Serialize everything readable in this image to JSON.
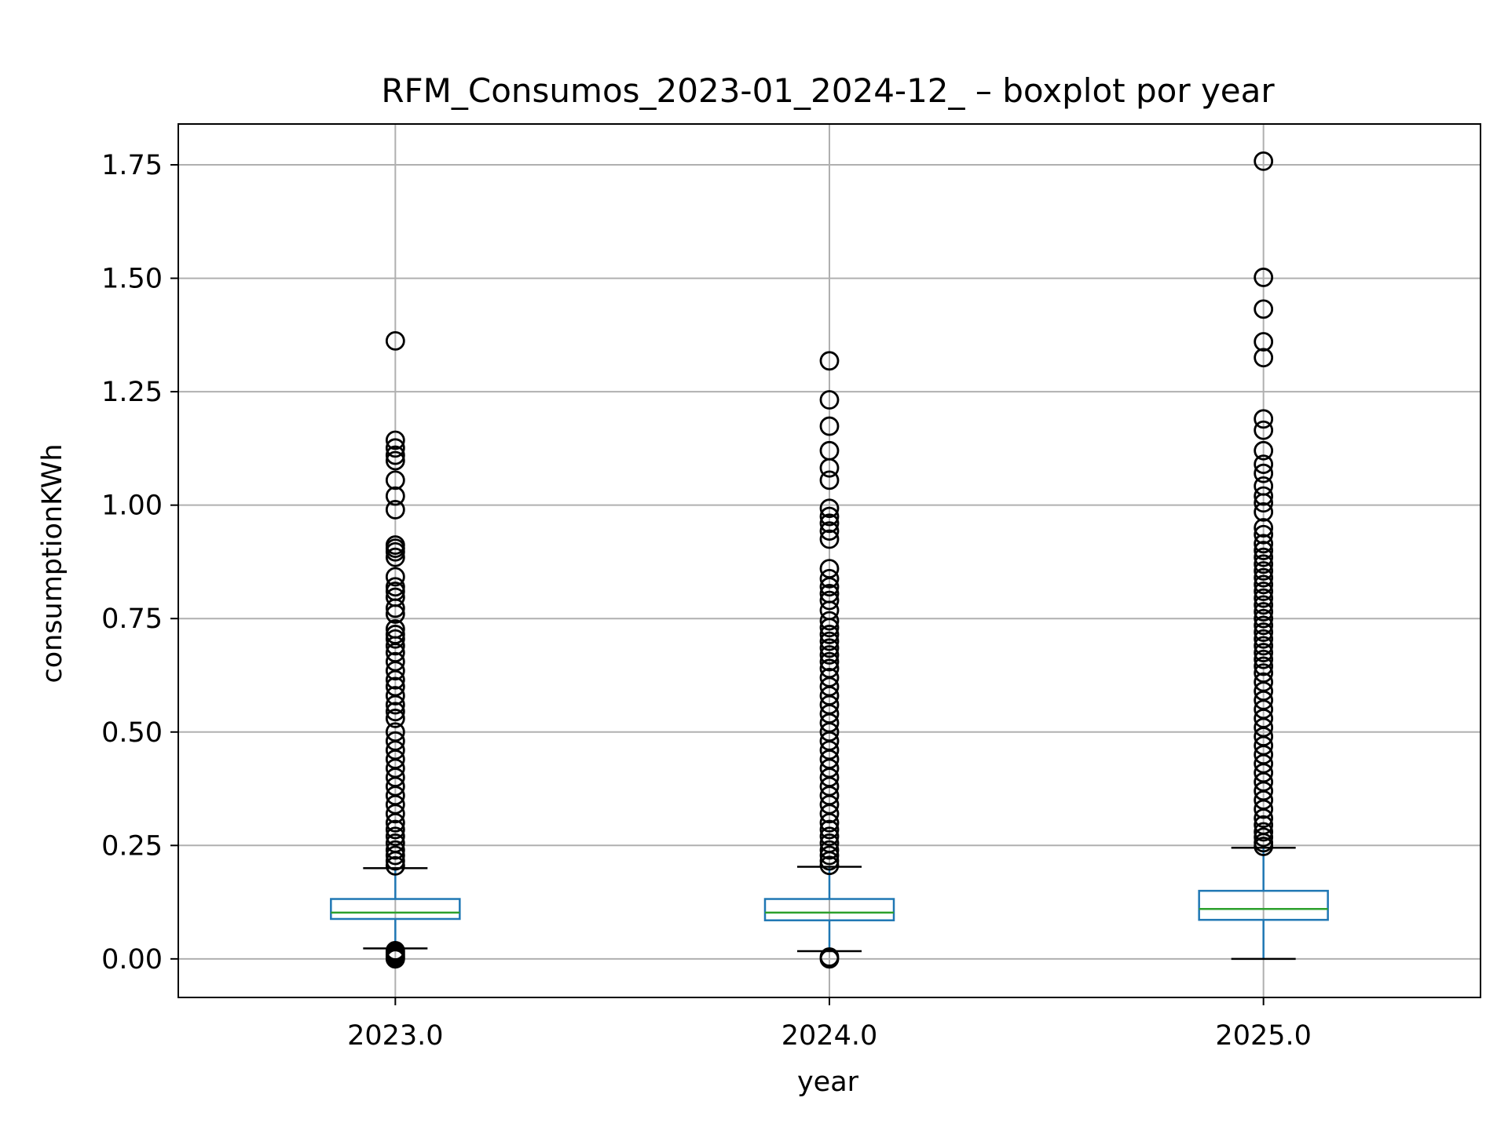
{
  "chart_data": {
    "type": "boxplot",
    "title": "RFM_Consumos_2023-01_2024-12_ – boxplot por year",
    "xlabel": "year",
    "ylabel": "consumptionKWh",
    "categories": [
      "2023.0",
      "2024.0",
      "2025.0"
    ],
    "ylim": [
      -0.085,
      1.84
    ],
    "yticks": [
      "0.00",
      "0.25",
      "0.50",
      "0.75",
      "1.00",
      "1.25",
      "1.50",
      "1.75"
    ],
    "grid": true,
    "colors": {
      "box": "#1f77b4",
      "median": "#2ca02c",
      "whisker": "#1f77b4",
      "cap": "#000000",
      "flier": "#000000",
      "grid": "#b0b0b0"
    },
    "boxes": [
      {
        "category": "2023.0",
        "whislo": 0.023,
        "q1": 0.088,
        "med": 0.102,
        "q3": 0.132,
        "whishi": 0.2,
        "fliers_low": [
          0.0,
          0.003,
          0.006,
          0.01,
          0.014,
          0.018
        ],
        "fliers_high": [
          1.362,
          1.143,
          1.126,
          1.11,
          1.098,
          1.055,
          1.02,
          0.99,
          0.912,
          0.905,
          0.897,
          0.885,
          0.842,
          0.82,
          0.81,
          0.797,
          0.773,
          0.76,
          0.727,
          0.715,
          0.705,
          0.69,
          0.675,
          0.655,
          0.635,
          0.615,
          0.6,
          0.58,
          0.56,
          0.545,
          0.53,
          0.5,
          0.48,
          0.46,
          0.44,
          0.42,
          0.4,
          0.38,
          0.36,
          0.34,
          0.32,
          0.3,
          0.285,
          0.27,
          0.255,
          0.24,
          0.228,
          0.216,
          0.205
        ]
      },
      {
        "category": "2024.0",
        "whislo": 0.017,
        "q1": 0.085,
        "med": 0.102,
        "q3": 0.132,
        "whishi": 0.203,
        "fliers_low": [
          0.0,
          0.004
        ],
        "fliers_high": [
          1.318,
          1.232,
          1.174,
          1.12,
          1.082,
          1.055,
          0.993,
          0.975,
          0.96,
          0.943,
          0.925,
          0.86,
          0.838,
          0.82,
          0.805,
          0.79,
          0.768,
          0.745,
          0.73,
          0.715,
          0.7,
          0.685,
          0.67,
          0.655,
          0.64,
          0.62,
          0.6,
          0.58,
          0.56,
          0.54,
          0.52,
          0.5,
          0.48,
          0.46,
          0.44,
          0.42,
          0.4,
          0.38,
          0.36,
          0.34,
          0.32,
          0.3,
          0.285,
          0.27,
          0.255,
          0.24,
          0.228,
          0.216,
          0.206
        ]
      },
      {
        "category": "2025.0",
        "whislo": 0.0,
        "q1": 0.086,
        "med": 0.11,
        "q3": 0.15,
        "whishi": 0.245,
        "fliers_low": [],
        "fliers_high": [
          1.758,
          1.502,
          1.432,
          1.36,
          1.325,
          1.19,
          1.165,
          1.12,
          1.09,
          1.07,
          1.042,
          1.02,
          1.005,
          0.985,
          0.95,
          0.935,
          0.915,
          0.9,
          0.885,
          0.87,
          0.855,
          0.84,
          0.825,
          0.81,
          0.795,
          0.78,
          0.765,
          0.75,
          0.735,
          0.72,
          0.705,
          0.69,
          0.675,
          0.66,
          0.645,
          0.63,
          0.61,
          0.59,
          0.57,
          0.55,
          0.53,
          0.51,
          0.49,
          0.47,
          0.45,
          0.43,
          0.41,
          0.39,
          0.37,
          0.35,
          0.33,
          0.31,
          0.295,
          0.28,
          0.268,
          0.256,
          0.248
        ]
      }
    ]
  }
}
